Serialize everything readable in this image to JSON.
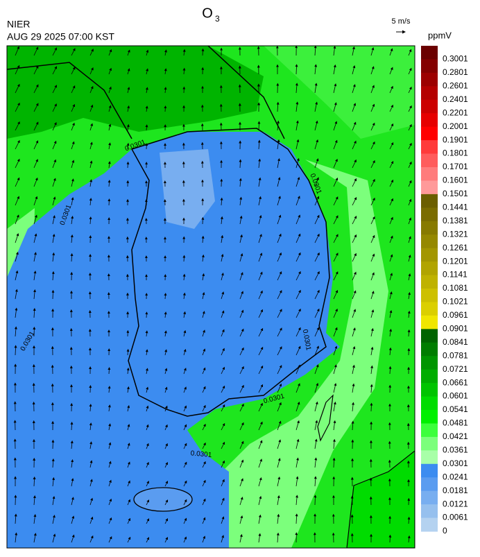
{
  "header": {
    "agency": "NIER",
    "timestamp": "AUG 29 2025 07:00 KST",
    "title": {
      "main": "O",
      "subscript": "3"
    }
  },
  "wind_key": {
    "label": "5 m/s"
  },
  "colorbar": {
    "unit": "ppmV",
    "labels": [
      "0.3001",
      "0.2801",
      "0.2601",
      "0.2401",
      "0.2201",
      "0.2001",
      "0.1901",
      "0.1801",
      "0.1701",
      "0.1601",
      "0.1501",
      "0.1441",
      "0.1381",
      "0.1321",
      "0.1261",
      "0.1201",
      "0.1141",
      "0.1081",
      "0.1021",
      "0.0961",
      "0.0901",
      "0.0841",
      "0.0781",
      "0.0721",
      "0.0661",
      "0.0601",
      "0.0541",
      "0.0481",
      "0.0421",
      "0.0361",
      "0.0301",
      "0.0241",
      "0.0181",
      "0.0121",
      "0.0061",
      "0"
    ],
    "colors": [
      "#6b0000",
      "#840000",
      "#9c0000",
      "#b40000",
      "#cc0000",
      "#e60000",
      "#ff0000",
      "#ff3a3a",
      "#ff5c5c",
      "#ff7c7c",
      "#ff9a9a",
      "#6b5e00",
      "#7a6c00",
      "#877a00",
      "#958800",
      "#a39600",
      "#b1a400",
      "#bfb200",
      "#cdc000",
      "#dbcf00",
      "#f0e600",
      "#006400",
      "#007d00",
      "#009500",
      "#00ad00",
      "#00c400",
      "#00dc00",
      "#00f000",
      "#3cff3c",
      "#7cff7c",
      "#a8ffa8",
      "#3c8cf0",
      "#5a9cf0",
      "#78aef0",
      "#96c0ee",
      "#b4d2f0"
    ]
  },
  "contour_labels": [
    "0.0301",
    "0.0301",
    "0.0301",
    "0.0301",
    "0.0301",
    "0.0301",
    "0.0301"
  ]
}
